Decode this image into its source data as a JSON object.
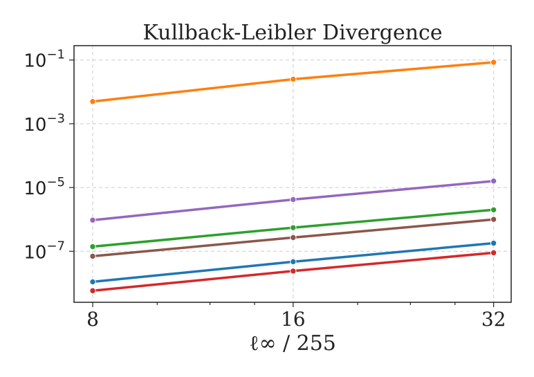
{
  "chart_data": {
    "type": "line",
    "title": "Kullback-Leibler Divergence",
    "xlabel": "ℓ∞ / 255",
    "ylabel": "",
    "xscale": "log2",
    "yscale": "log",
    "x": [
      8,
      16,
      32
    ],
    "xlim": [
      7.5,
      34
    ],
    "ylim_exponents": [
      -8.6,
      -0.55
    ],
    "x_ticks": [
      "8",
      "16",
      "32"
    ],
    "y_ticks": [
      {
        "base": "10",
        "exp": "−1",
        "value": 0.1
      },
      {
        "base": "10",
        "exp": "−3",
        "value": 0.001
      },
      {
        "base": "10",
        "exp": "−5",
        "value": 1e-05
      },
      {
        "base": "10",
        "exp": "−7",
        "value": 1e-07
      }
    ],
    "grid": true,
    "series": [
      {
        "color": "#ff7f0e",
        "values": [
          0.005,
          0.025,
          0.085
        ]
      },
      {
        "color": "#9467bd",
        "values": [
          9.5e-07,
          4.2e-06,
          1.6e-05
        ]
      },
      {
        "color": "#2ca02c",
        "values": [
          1.4e-07,
          5.5e-07,
          2e-06
        ]
      },
      {
        "color": "#8c564b",
        "values": [
          7e-08,
          2.7e-07,
          1e-06
        ]
      },
      {
        "color": "#1f77b4",
        "values": [
          1.1e-08,
          4.7e-08,
          1.8e-07
        ]
      },
      {
        "color": "#d62728",
        "values": [
          5.8e-09,
          2.4e-08,
          9e-08
        ]
      }
    ]
  }
}
